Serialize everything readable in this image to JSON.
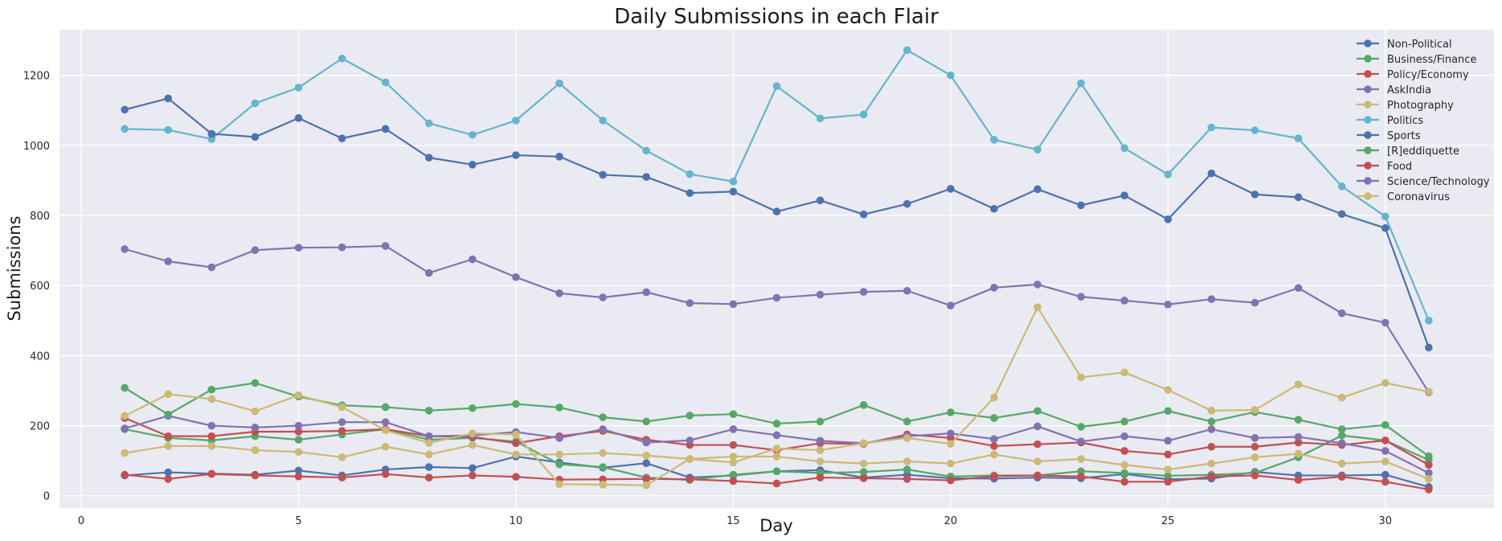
{
  "chart_data": {
    "type": "line",
    "title": "Daily Submissions in each Flair",
    "xlabel": "Day",
    "ylabel": "Submissions",
    "xlim": [
      -0.5,
      32.5
    ],
    "ylim": [
      -35,
      1330
    ],
    "xticks": [
      0,
      5,
      10,
      15,
      20,
      25,
      30
    ],
    "yticks": [
      0,
      200,
      400,
      600,
      800,
      1000,
      1200
    ],
    "grid": true,
    "legend_position": "top-right",
    "x": [
      1,
      2,
      3,
      4,
      5,
      6,
      7,
      8,
      9,
      10,
      11,
      12,
      13,
      14,
      15,
      16,
      17,
      18,
      19,
      20,
      21,
      22,
      23,
      24,
      25,
      26,
      27,
      28,
      29,
      30,
      31
    ],
    "series": [
      {
        "name": "Non-Political",
        "color": "#4c72b0",
        "values": [
          58,
          67,
          63,
          60,
          72,
          58,
          75,
          82,
          79,
          112,
          95,
          80,
          93,
          52,
          58,
          70,
          73,
          52,
          60,
          50,
          49,
          52,
          50,
          62,
          47,
          49,
          68,
          58,
          58,
          60,
          25
        ]
      },
      {
        "name": "Business/Finance",
        "color": "#55a868",
        "values": [
          190,
          165,
          158,
          170,
          160,
          175,
          190,
          160,
          165,
          155,
          90,
          82,
          52,
          45,
          60,
          70,
          65,
          68,
          75,
          55,
          58,
          58,
          70,
          65,
          57,
          60,
          65,
          110,
          172,
          158,
          102
        ]
      },
      {
        "name": "Policy/Economy",
        "color": "#c44e52",
        "values": [
          222,
          170,
          170,
          183,
          183,
          185,
          190,
          170,
          168,
          150,
          170,
          185,
          160,
          145,
          145,
          130,
          150,
          148,
          175,
          165,
          142,
          147,
          152,
          128,
          118,
          140,
          140,
          152,
          145,
          158,
          88
        ]
      },
      {
        "name": "AskIndia",
        "color": "#8172b2",
        "values": [
          192,
          228,
          200,
          195,
          200,
          210,
          210,
          170,
          172,
          182,
          165,
          190,
          152,
          158,
          190,
          173,
          157,
          150,
          170,
          178,
          162,
          198,
          155,
          170,
          157,
          190,
          165,
          168,
          150,
          128,
          65
        ]
      },
      {
        "name": "Photography",
        "color": "#ccb974",
        "values": [
          122,
          142,
          142,
          130,
          125,
          110,
          140,
          118,
          145,
          118,
          118,
          122,
          115,
          105,
          112,
          112,
          98,
          92,
          98,
          92,
          118,
          98,
          105,
          88,
          75,
          92,
          110,
          120,
          92,
          98,
          48
        ]
      },
      {
        "name": "Politics",
        "color": "#64b5cd",
        "values": [
          1047,
          1044,
          1018,
          1120,
          1165,
          1248,
          1180,
          1063,
          1030,
          1071,
          1177,
          1071,
          985,
          918,
          897,
          1169,
          1077,
          1088,
          1272,
          1200,
          1016,
          988,
          1177,
          992,
          917,
          1051,
          1043,
          1020,
          883,
          797,
          500
        ]
      },
      {
        "name": "Sports",
        "color": "#4c72b0",
        "values": [
          1102,
          1134,
          1033,
          1024,
          1078,
          1020,
          1047,
          965,
          945,
          972,
          968,
          916,
          910,
          864,
          868,
          811,
          843,
          803,
          833,
          876,
          819,
          875,
          829,
          857,
          789,
          920,
          860,
          852,
          804,
          764,
          423
        ]
      },
      {
        "name": "[R]eddiquette",
        "color": "#55a868",
        "values": [
          308,
          232,
          303,
          322,
          283,
          258,
          253,
          243,
          250,
          262,
          252,
          224,
          212,
          229,
          233,
          206,
          212,
          259,
          212,
          238,
          222,
          242,
          197,
          212,
          242,
          212,
          239,
          217,
          190,
          202,
          113
        ]
      },
      {
        "name": "Food",
        "color": "#c44e52",
        "values": [
          60,
          48,
          62,
          58,
          55,
          52,
          62,
          52,
          58,
          54,
          46,
          47,
          48,
          47,
          42,
          35,
          52,
          50,
          48,
          44,
          56,
          58,
          55,
          40,
          40,
          55,
          58,
          45,
          54,
          40,
          18
        ]
      },
      {
        "name": "Science/Technology",
        "color": "#8172b2",
        "values": [
          704,
          669,
          652,
          701,
          708,
          709,
          713,
          636,
          675,
          624,
          578,
          566,
          581,
          550,
          547,
          565,
          574,
          582,
          585,
          543,
          594,
          603,
          568,
          557,
          546,
          561,
          551,
          593,
          521,
          494,
          295
        ]
      },
      {
        "name": "Coronavirus",
        "color": "#ccb974",
        "values": [
          228,
          290,
          276,
          241,
          287,
          253,
          187,
          151,
          178,
          175,
          33,
          32,
          30,
          105,
          95,
          135,
          130,
          150,
          165,
          148,
          280,
          538,
          338,
          352,
          302,
          243,
          245,
          318,
          280,
          322,
          297
        ]
      }
    ]
  }
}
